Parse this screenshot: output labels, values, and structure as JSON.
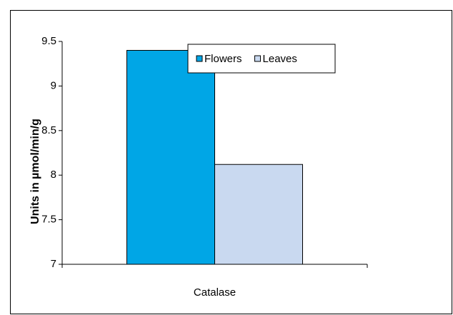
{
  "chart_data": {
    "type": "bar",
    "categories": [
      "Catalase"
    ],
    "series": [
      {
        "name": "Flowers",
        "color": "#00a6e6",
        "values": [
          9.4
        ]
      },
      {
        "name": "Leaves",
        "color": "#c9d9f0",
        "values": [
          8.12
        ]
      }
    ],
    "y_label": "Units in µmol/min/g",
    "ylim": [
      7,
      9.5
    ],
    "yticks": [
      7,
      7.5,
      8,
      8.5,
      9,
      9.5
    ],
    "legend": "top-right"
  }
}
